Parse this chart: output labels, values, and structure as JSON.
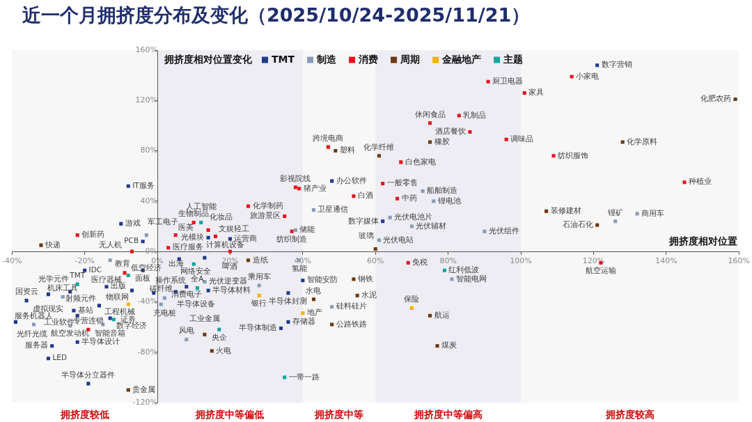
{
  "chart_data": {
    "type": "scatter",
    "title": "近一个月拥挤度分布及变化（2025/10/24-2025/11/21）",
    "xlabel": "拥挤度相对位置",
    "ylabel": "拥挤度相对位置变化",
    "xlim": [
      -40,
      160
    ],
    "xticks": [
      {
        "value": -40,
        "label": "-40%"
      },
      {
        "value": -20,
        "label": "-20%"
      },
      {
        "value": 0,
        "label": "0%"
      },
      {
        "value": 20,
        "label": "20%"
      },
      {
        "value": 40,
        "label": "40%"
      },
      {
        "value": 60,
        "label": "60%"
      },
      {
        "value": 80,
        "label": "80%"
      },
      {
        "value": 100,
        "label": "100%"
      },
      {
        "value": 120,
        "label": "120%"
      },
      {
        "value": 140,
        "label": "140%"
      },
      {
        "value": 160,
        "label": "160%"
      }
    ],
    "ylim": [
      -120,
      160
    ],
    "yticks": [
      {
        "value": -120,
        "label": "-120%"
      },
      {
        "value": -80,
        "label": "-80%"
      },
      {
        "value": -40,
        "label": "-40%"
      },
      {
        "value": 0,
        "label": "0%"
      },
      {
        "value": 40,
        "label": "40%"
      },
      {
        "value": 80,
        "label": "80%"
      },
      {
        "value": 120,
        "label": "120%"
      },
      {
        "value": 160,
        "label": "160%"
      }
    ],
    "grid": false,
    "legend": "top",
    "marker": "square",
    "bands": [
      {
        "axis": "x",
        "from": -40,
        "to": 0,
        "label": "拥挤度较低",
        "color": "#f7f7f8"
      },
      {
        "axis": "x",
        "from": 0,
        "to": 40,
        "label": "拥挤度中等偏低",
        "color": "#ededf3"
      },
      {
        "axis": "x",
        "from": 40,
        "to": 60,
        "label": "拥挤度中等",
        "color": "#f7f7f8"
      },
      {
        "axis": "x",
        "from": 60,
        "to": 100,
        "label": "拥挤度中等偏高",
        "color": "#ededf3"
      },
      {
        "axis": "x",
        "from": 100,
        "to": 160,
        "label": "拥挤度较高",
        "color": "#f7f7f8"
      }
    ],
    "series": [
      {
        "name": "TMT",
        "color": "#1f3b8c",
        "x": [
          -8,
          -10,
          -4,
          14,
          20,
          48,
          62,
          121,
          -20,
          -4,
          -14,
          -7,
          -1,
          -24,
          -30,
          -36,
          -16,
          -23,
          -22,
          -13,
          -39,
          -22,
          -29,
          -30,
          -19,
          6,
          13,
          5,
          8,
          14,
          40,
          36,
          36,
          34
        ],
        "values": [
          52,
          22,
          8,
          11,
          10,
          56,
          24,
          148,
          -15,
          -15,
          -28,
          -31,
          -33,
          -32,
          -34,
          -39,
          -43,
          -47,
          -51,
          -53,
          -56,
          -72,
          -75,
          -85,
          -105,
          -6,
          -5,
          -32,
          -28,
          -31,
          -23,
          -33,
          -56,
          -61
        ],
        "value_labels": [
          "IT服务",
          "游戏",
          "PCB",
          "光模块",
          "运营商",
          "办公软件",
          "数字媒体",
          "数字营销",
          "IDC",
          "面板",
          "出版",
          "物联网",
          "操作系统",
          "光学元件",
          "虚拟现实",
          "国资云",
          "射频元件",
          "基站",
          "工业软件",
          "智能音箱",
          "光纤光缆",
          "半导体设计",
          "服务器",
          "LED",
          "半导体分立器件",
          "网络安全",
          "计算机设备",
          "半导体设备",
          "消费电子",
          "半导体材料",
          "智能安防",
          "半导体封测",
          "存储器",
          "半导体制造"
        ]
      },
      {
        "name": "制造",
        "color": "#8a9bb8",
        "x": [
          -3,
          -13,
          -26,
          -34,
          -24,
          -15,
          13,
          2,
          1,
          8,
          38,
          43,
          73,
          76,
          64,
          70,
          90,
          61,
          132,
          126,
          39,
          28,
          48,
          81
        ],
        "values": [
          13,
          -7,
          -36,
          -58,
          -59,
          -58,
          -24,
          -37,
          -42,
          -70,
          17,
          33,
          48,
          40,
          27,
          20,
          16,
          9,
          30,
          24,
          -7,
          -27,
          -44,
          -22
        ],
        "value_labels": [
          "军工电子",
          "无人机",
          "机床工具",
          "服务机器人",
          "航空发动机",
          "工程机械",
          "光伏逆变器",
          "充电桩",
          "碳纤维",
          "风电",
          "储能",
          "卫星通信",
          "船舶制造",
          "锂电池",
          "光伏电池片",
          "光伏辅材",
          "光伏组件",
          "光伏电站",
          "商用车",
          "锂矿",
          "氢能",
          "乘用车",
          "硅料硅片",
          "智能电网"
        ]
      },
      {
        "name": "消费",
        "color": "#e8141c",
        "x": [
          -22,
          -7,
          -9,
          -19,
          3,
          20,
          10,
          5,
          14,
          16,
          25,
          38,
          39,
          35,
          37,
          47,
          54,
          62,
          67,
          66,
          91,
          83,
          75,
          86,
          96,
          114,
          101,
          109,
          145,
          122,
          69
        ],
        "values": [
          13,
          0,
          -17,
          -62,
          3,
          0,
          23,
          13,
          17,
          12,
          36,
          51,
          50,
          28,
          16,
          83,
          44,
          54,
          71,
          42,
          135,
          108,
          102,
          95,
          89,
          139,
          126,
          76,
          55,
          -9,
          -9
        ],
        "value_labels": [
          "创新药",
          "教育",
          "医疗器械",
          "专营连锁",
          "医疗服务",
          "啤酒",
          "生物制品",
          "医美",
          "化妆品",
          "文娱轻工",
          "化学制药",
          "影视院线",
          "猪产业",
          "旅游景区",
          "纺织制造",
          "跨境电商",
          "白酒",
          "一般零售",
          "白色家电",
          "中药",
          "厨卫电器",
          "乳制品",
          "休闲食品",
          "酒店餐饮",
          "调味品",
          "小家电",
          "家具",
          "纺织服饰",
          "种植业",
          "航空运输",
          "免税"
        ]
      },
      {
        "name": "周期",
        "color": "#6b3a12",
        "x": [
          -32,
          -8,
          25,
          13,
          15,
          49,
          61,
          75,
          159,
          128,
          107,
          121,
          60,
          54,
          43,
          55,
          48,
          75,
          77
        ],
        "values": [
          5,
          -110,
          -7,
          -66,
          -79,
          80,
          76,
          87,
          121,
          87,
          32,
          21,
          2,
          -22,
          -38,
          -35,
          -58,
          -51,
          -75
        ],
        "value_labels": [
          "快递",
          "贵金属",
          "造纸",
          "工业金属",
          "火电",
          "塑料",
          "化学纤维",
          "橡胶",
          "化肥农药",
          "化学原料",
          "装修建材",
          "石油石化",
          "玻璃",
          "钢铁",
          "水电",
          "水泥",
          "公路铁路",
          "航运",
          "煤炭"
        ]
      },
      {
        "name": "金融地产",
        "color": "#f2b400",
        "x": [
          -8,
          28,
          40,
          70
        ],
        "values": [
          -42,
          -35,
          -49,
          -45
        ],
        "value_labels": [
          "证券",
          "银行",
          "地产",
          "保险"
        ]
      },
      {
        "name": "主题",
        "color": "#16a3a3",
        "x": [
          -8,
          -22,
          -12,
          12,
          10,
          11,
          17,
          35,
          79
        ],
        "values": [
          -19,
          -26,
          -54,
          23,
          -10,
          -29,
          -62,
          -100,
          -15
        ],
        "value_labels": [
          "低空经济",
          "TMT",
          "数字经济",
          "人工智能",
          "出海",
          "全A",
          "央企",
          "一带一路",
          "红利低波"
        ]
      }
    ]
  }
}
